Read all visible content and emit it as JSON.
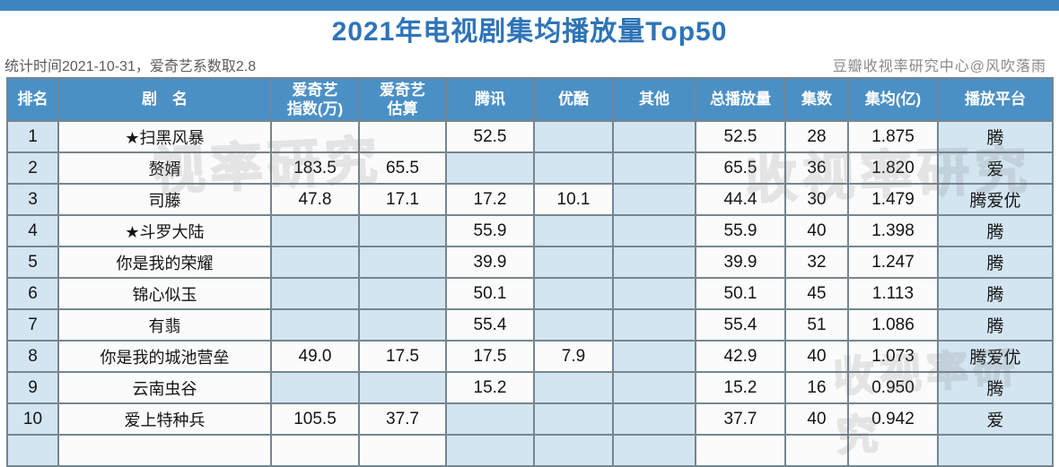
{
  "page": {
    "title": "2021年电视剧集均播放量Top50",
    "subtitle_left": "统计时间2021-10-31，爱奇艺系数取2.8",
    "subtitle_right": "豆瓣收视率研究中心@风吹落雨"
  },
  "colors": {
    "top_strip": "#3e86c0",
    "title_text": "#2e74b8",
    "header_bg": "#4b90c5",
    "header_text": "#ffffff",
    "cell_white": "#fbfbfb",
    "cell_shaded": "#d3e5f1",
    "border": "#75868f"
  },
  "watermarks": [
    "视率研究",
    "收视率研究",
    "收视率研究"
  ],
  "chart_data": {
    "type": "table",
    "title": "2021年电视剧集均播放量Top50",
    "columns": [
      "排名",
      "剧　名",
      "爱奇艺\n指数(万)",
      "爱奇艺\n估算",
      "腾讯",
      "优酷",
      "其他",
      "总播放量",
      "集数",
      "集均(亿)",
      "播放平台"
    ],
    "column_keys": [
      "rank",
      "name",
      "iqiyi-index",
      "iqiyi-estimate",
      "tencent",
      "youku",
      "other",
      "total-plays",
      "episodes",
      "avg-per-episode",
      "platform"
    ],
    "rows": [
      [
        "1",
        "★扫黑风暴",
        "",
        "",
        "52.5",
        "",
        "",
        "52.5",
        "28",
        "1.875",
        "腾"
      ],
      [
        "2",
        "赘婿",
        "183.5",
        "65.5",
        "",
        "",
        "",
        "65.5",
        "36",
        "1.820",
        "爱"
      ],
      [
        "3",
        "司藤",
        "47.8",
        "17.1",
        "17.2",
        "10.1",
        "",
        "44.4",
        "30",
        "1.479",
        "腾爱优"
      ],
      [
        "4",
        "★斗罗大陆",
        "",
        "",
        "55.9",
        "",
        "",
        "55.9",
        "40",
        "1.398",
        "腾"
      ],
      [
        "5",
        "你是我的荣耀",
        "",
        "",
        "39.9",
        "",
        "",
        "39.9",
        "32",
        "1.247",
        "腾"
      ],
      [
        "6",
        "锦心似玉",
        "",
        "",
        "50.1",
        "",
        "",
        "50.1",
        "45",
        "1.113",
        "腾"
      ],
      [
        "7",
        "有翡",
        "",
        "",
        "55.4",
        "",
        "",
        "55.4",
        "51",
        "1.086",
        "腾"
      ],
      [
        "8",
        "你是我的城池营垒",
        "49.0",
        "17.5",
        "17.5",
        "7.9",
        "",
        "42.9",
        "40",
        "1.073",
        "腾爱优"
      ],
      [
        "9",
        "云南虫谷",
        "",
        "",
        "15.2",
        "",
        "",
        "15.2",
        "16",
        "0.950",
        "腾"
      ],
      [
        "10",
        "爱上特种兵",
        "105.5",
        "37.7",
        "",
        "",
        "",
        "37.7",
        "40",
        "0.942",
        "爱"
      ],
      [
        "",
        "",
        "",
        "",
        "",
        "",
        "",
        "",
        "",
        "",
        ""
      ]
    ]
  },
  "style": {
    "shaded_cells": [
      [
        0,
        5,
        6,
        10
      ],
      [
        0,
        4,
        5,
        6,
        10
      ],
      [
        0,
        6,
        10
      ],
      [
        0,
        2,
        3,
        5,
        6,
        10
      ],
      [
        0,
        2,
        3,
        5,
        6,
        10
      ],
      [
        0,
        2,
        3,
        5,
        6,
        10
      ],
      [
        0,
        2,
        3,
        5,
        6,
        10
      ],
      [
        0,
        6,
        10
      ],
      [
        0,
        2,
        3,
        5,
        6,
        10
      ],
      [
        0,
        4,
        5,
        6,
        10
      ],
      [
        0,
        4,
        5,
        6,
        10
      ]
    ]
  }
}
